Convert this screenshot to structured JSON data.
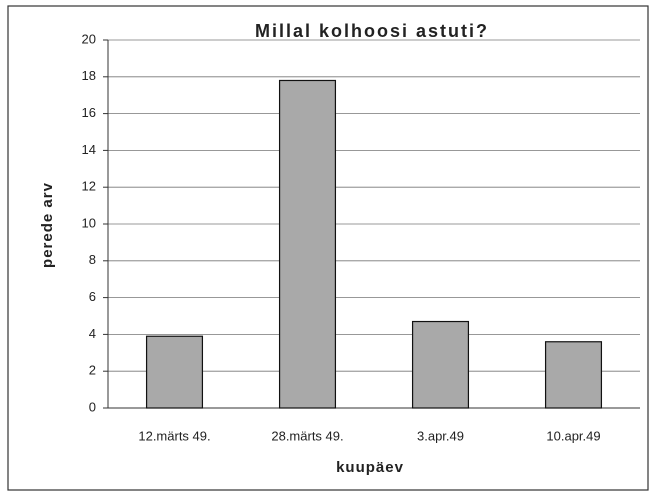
{
  "chart_data": {
    "type": "bar",
    "title": "Millal kolhoosi astuti?",
    "xlabel": "kuupäev",
    "ylabel": "perede arv",
    "categories": [
      "12.märts 49.",
      "28.märts 49.",
      "3.apr.49",
      "10.apr.49"
    ],
    "values": [
      3.9,
      17.8,
      4.7,
      3.6
    ],
    "color": "#a9a9a9",
    "ylim": [
      0,
      20
    ],
    "yticks": [
      0,
      2,
      4,
      6,
      8,
      10,
      12,
      14,
      16,
      18,
      20
    ],
    "grid": true
  }
}
